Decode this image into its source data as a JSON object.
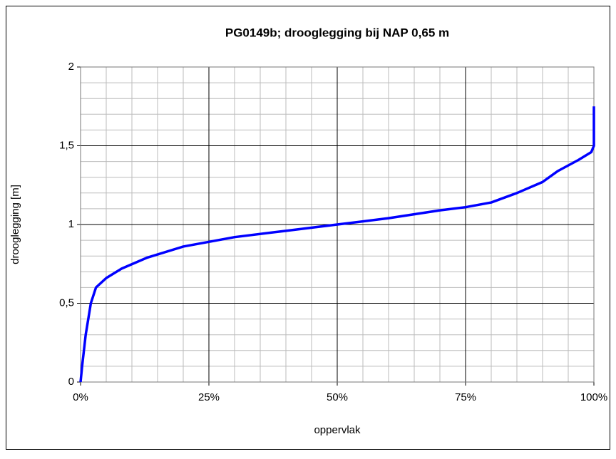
{
  "chart_data": {
    "type": "line",
    "title": "PG0149b; drooglegging bij NAP 0,65 m",
    "xlabel": "oppervlak",
    "ylabel": "drooglegging [m]",
    "x": [
      0,
      0.3,
      1,
      2,
      3,
      5,
      8,
      13,
      20,
      25,
      30,
      40,
      50,
      60,
      70,
      75,
      80,
      85,
      90,
      93,
      97,
      99.5,
      100,
      100
    ],
    "series": [
      {
        "name": "drooglegging",
        "color": "#0000ff",
        "values": [
          0,
          0.1,
          0.3,
          0.5,
          0.6,
          0.66,
          0.72,
          0.79,
          0.86,
          0.89,
          0.92,
          0.96,
          1.0,
          1.04,
          1.09,
          1.11,
          1.14,
          1.2,
          1.27,
          1.34,
          1.41,
          1.46,
          1.5,
          1.75
        ]
      }
    ],
    "xlim": [
      0,
      100
    ],
    "ylim": [
      0,
      2
    ],
    "xticks": [
      {
        "value": 0,
        "label": "0%"
      },
      {
        "value": 25,
        "label": "25%"
      },
      {
        "value": 50,
        "label": "50%"
      },
      {
        "value": 75,
        "label": "75%"
      },
      {
        "value": 100,
        "label": "100%"
      }
    ],
    "yticks": [
      0,
      {
        "value": 0.5,
        "label": "0,5"
      },
      1,
      {
        "value": 1.5,
        "label": "1,5"
      },
      2
    ],
    "xminorticks": [
      5,
      10,
      15,
      20,
      30,
      35,
      40,
      45,
      55,
      60,
      65,
      70,
      80,
      85,
      90,
      95
    ],
    "yminorticks": [
      0.1,
      0.2,
      0.3,
      0.4,
      0.6,
      0.7,
      0.8,
      0.9,
      1.1,
      1.2,
      1.3,
      1.4,
      1.6,
      1.7,
      1.8,
      1.9
    ],
    "grid": true
  }
}
